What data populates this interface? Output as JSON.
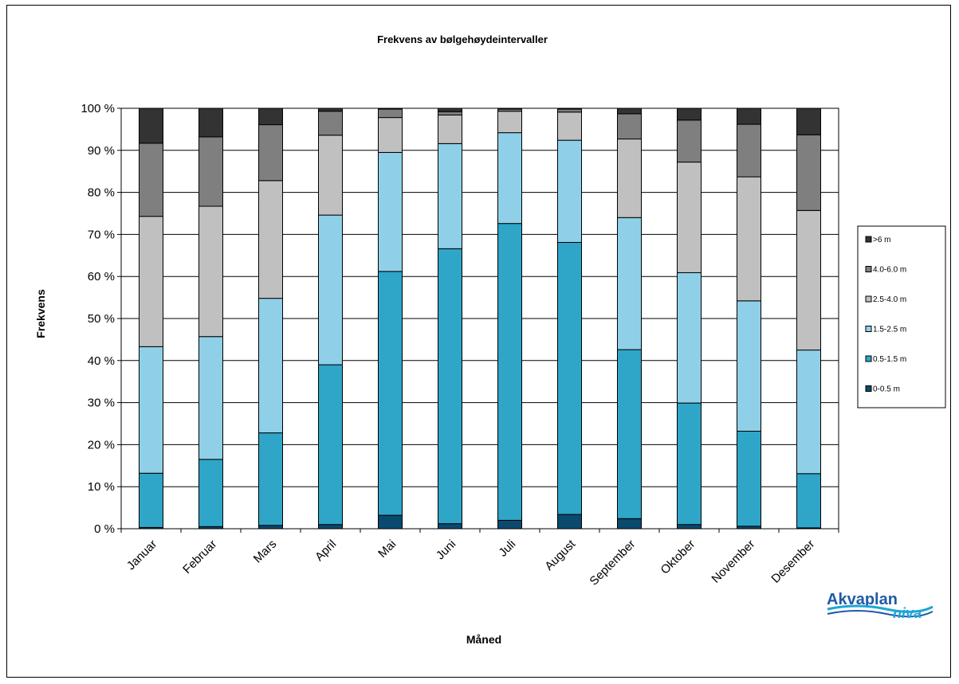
{
  "chart_data": {
    "type": "bar",
    "stacked": true,
    "title": "Frekvens av bølgehøydeintervaller",
    "xlabel": "Måned",
    "ylabel": "Frekvens",
    "ylim": [
      0,
      100
    ],
    "yticks": [
      "0 %",
      "10 %",
      "20 %",
      "30 %",
      "40 %",
      "50 %",
      "60 %",
      "70 %",
      "80 %",
      "90 %",
      "100 %"
    ],
    "grid": true,
    "legend_position": "right",
    "categories": [
      "Januar",
      "Februar",
      "Mars",
      "April",
      "Mai",
      "Juni",
      "Juli",
      "August",
      "September",
      "Oktober",
      "November",
      "Desember"
    ],
    "series": [
      {
        "name": "0-0.5 m",
        "color": "#0a4a6e",
        "values": [
          0.3,
          0.5,
          0.8,
          1.0,
          3.2,
          1.2,
          2.0,
          3.4,
          2.4,
          1.0,
          0.6,
          0.2
        ]
      },
      {
        "name": "0.5-1.5 m",
        "color": "#2fa5c8",
        "values": [
          12.9,
          16.0,
          22.0,
          38.0,
          58.0,
          65.4,
          70.6,
          64.7,
          40.2,
          28.9,
          22.6,
          12.9
        ]
      },
      {
        "name": "1.5-2.5 m",
        "color": "#8fd0e8",
        "values": [
          30.1,
          29.2,
          32.0,
          35.6,
          28.3,
          25.0,
          21.6,
          24.3,
          31.4,
          31.0,
          31.0,
          29.4
        ]
      },
      {
        "name": "2.5-4.0 m",
        "color": "#c0c0c0",
        "values": [
          31.0,
          31.0,
          28.0,
          19.0,
          8.3,
          6.8,
          5.1,
          6.7,
          18.7,
          26.3,
          29.5,
          33.2
        ]
      },
      {
        "name": "4.0-6.0 m",
        "color": "#7f7f7f",
        "values": [
          17.4,
          16.5,
          13.3,
          5.7,
          2.0,
          0.8,
          0.5,
          0.7,
          6.0,
          10.0,
          12.5,
          18.0
        ]
      },
      {
        "name": ">6 m",
        "color": "#333333",
        "values": [
          8.3,
          6.8,
          3.9,
          0.7,
          0.2,
          0.8,
          0.2,
          0.2,
          1.3,
          2.8,
          3.8,
          6.3
        ]
      }
    ]
  },
  "logo": {
    "main": "Akvaplan",
    "sub": "niva"
  }
}
